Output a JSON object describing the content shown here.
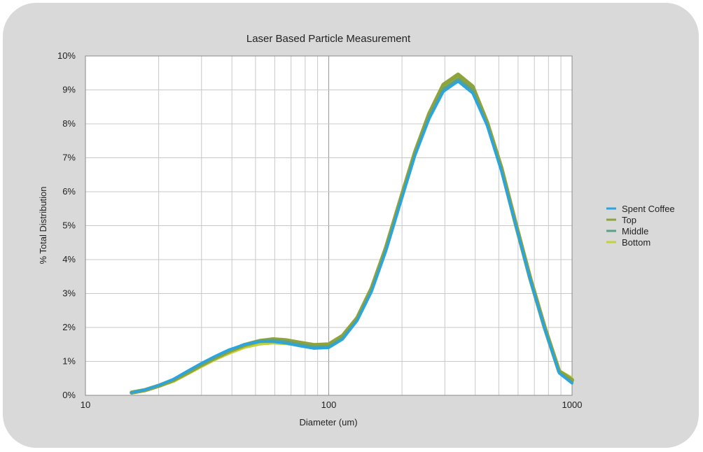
{
  "chart_data": {
    "type": "line",
    "title": "Laser Based Particle Measurement",
    "xlabel": "Diameter (um)",
    "ylabel": "% Total Distribution",
    "x_scale": "log",
    "xlim": [
      10,
      1000
    ],
    "ylim": [
      0,
      10
    ],
    "x_tick_labels": [
      "10",
      "100",
      "1000"
    ],
    "y_tick_labels": [
      "0%",
      "1%",
      "2%",
      "3%",
      "4%",
      "5%",
      "6%",
      "7%",
      "8%",
      "9%",
      "10%"
    ],
    "grid": true,
    "legend_position": "right",
    "x": [
      15.5,
      17.5,
      20,
      23,
      26,
      30,
      34,
      39,
      45,
      52,
      59,
      67,
      76,
      87,
      100,
      114,
      131,
      150,
      172,
      197,
      226,
      259,
      296,
      340,
      390,
      447,
      512,
      587,
      673,
      772,
      885,
      1000
    ],
    "series": [
      {
        "name": "Spent Coffee",
        "color": "#2aa5e0",
        "values": [
          0.08,
          0.16,
          0.3,
          0.48,
          0.7,
          0.95,
          1.15,
          1.35,
          1.5,
          1.58,
          1.58,
          1.53,
          1.45,
          1.38,
          1.4,
          1.65,
          2.2,
          3.05,
          4.25,
          5.65,
          7.05,
          8.15,
          8.95,
          9.25,
          8.9,
          7.95,
          6.6,
          5.0,
          3.4,
          1.95,
          0.65,
          0.35
        ]
      },
      {
        "name": "Top",
        "color": "#8ea43a",
        "values": [
          0.08,
          0.15,
          0.28,
          0.45,
          0.65,
          0.9,
          1.1,
          1.3,
          1.48,
          1.6,
          1.65,
          1.62,
          1.55,
          1.48,
          1.5,
          1.75,
          2.28,
          3.15,
          4.35,
          5.75,
          7.15,
          8.3,
          9.15,
          9.45,
          9.1,
          8.05,
          6.7,
          5.05,
          3.45,
          2.0,
          0.7,
          0.45
        ]
      },
      {
        "name": "Middle",
        "color": "#5aa08a",
        "values": [
          0.08,
          0.16,
          0.29,
          0.47,
          0.68,
          0.93,
          1.13,
          1.33,
          1.5,
          1.6,
          1.62,
          1.58,
          1.5,
          1.42,
          1.44,
          1.68,
          2.22,
          3.08,
          4.28,
          5.68,
          7.08,
          8.2,
          9.02,
          9.32,
          8.98,
          7.98,
          6.64,
          5.02,
          3.42,
          1.97,
          0.67,
          0.38
        ]
      },
      {
        "name": "Bottom",
        "color": "#c2d23a",
        "values": [
          0.08,
          0.15,
          0.27,
          0.42,
          0.62,
          0.86,
          1.06,
          1.25,
          1.42,
          1.52,
          1.55,
          1.53,
          1.48,
          1.45,
          1.5,
          1.72,
          2.25,
          3.1,
          4.3,
          5.7,
          7.1,
          8.25,
          9.1,
          9.4,
          9.05,
          8.0,
          6.68,
          5.05,
          3.45,
          2.02,
          0.72,
          0.5
        ]
      }
    ],
    "legend": [
      "Spent Coffee",
      "Top",
      "Middle",
      "Bottom"
    ]
  }
}
